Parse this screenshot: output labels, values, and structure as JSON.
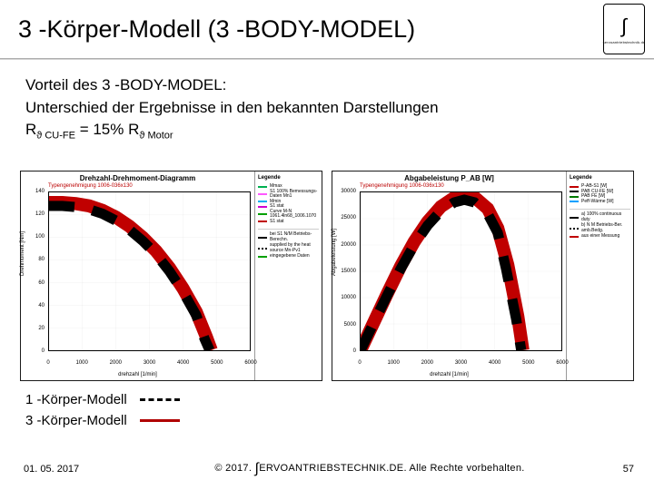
{
  "title": "3 -Körper-Modell (3 -BODY-MODEL)",
  "logo": {
    "symbol": "∫",
    "sub": "servoantriebstechnik.de"
  },
  "body": {
    "l1": "Vorteil des 3 -BODY-MODEL:",
    "l2": "Unterschied der Ergebnisse in den bekannten Darstellungen",
    "l3a": "R",
    "l3sub1": "ϑ CU-FE",
    "l3b": "  =  15%  R",
    "l3sub2": "ϑ Motor"
  },
  "chart_left": {
    "type": "line",
    "title": "Drehzahl-Drehmoment-Diagramm",
    "subtitle": "Typengenehmigung 1006-036x130",
    "xlabel": "drehzahl [1/min]",
    "ylabel": "Drehmoment [Nm]",
    "xlim": [
      0,
      6000
    ],
    "xtick_step": 1000,
    "ylim": [
      0,
      140
    ],
    "ytick_step": 20,
    "grid_color": "#b5b5b5",
    "legend_title": "Legende",
    "legend": [
      {
        "label": "Mmax",
        "color": "#00b050",
        "style": "solid"
      },
      {
        "label": "S1 100% Bemessungs-Daten Mn1",
        "color": "#ff59ff",
        "style": "solid"
      },
      {
        "label": "Mmin",
        "color": "#00b0f0",
        "style": "solid"
      },
      {
        "label": "S1 stat",
        "color": "#d000d0",
        "style": "solid"
      },
      {
        "label": "Curve M-N 1061.4ln68_1006.1070",
        "color": "#00a000",
        "style": "solid"
      },
      {
        "label": "S1 stat",
        "color": "#c00000",
        "style": "solid"
      }
    ],
    "legend_bottom": [
      {
        "label": "bei S1 N/M Betriebs-Berechn.",
        "color": "#000",
        "style": "dashed"
      },
      {
        "label": "supplied by the heat source Mn-Pv1",
        "color": "#000",
        "style": "dotted"
      },
      {
        "label": "eingegebene Daten",
        "color": "#00a000",
        "style": "solid"
      }
    ],
    "series": [
      {
        "name": "3-körper",
        "color": "#c00000",
        "style": "solid",
        "width": 1.8,
        "points": [
          [
            0,
            131
          ],
          [
            400,
            131
          ],
          [
            800,
            130
          ],
          [
            1200,
            128
          ],
          [
            1600,
            124
          ],
          [
            2000,
            118
          ],
          [
            2400,
            110
          ],
          [
            2800,
            100
          ],
          [
            3200,
            88
          ],
          [
            3600,
            73
          ],
          [
            4000,
            55
          ],
          [
            4400,
            34
          ],
          [
            4700,
            12
          ],
          [
            4850,
            0
          ]
        ]
      },
      {
        "name": "1-körper",
        "color": "#000000",
        "style": "dashed",
        "width": 1.4,
        "points": [
          [
            0,
            128
          ],
          [
            400,
            128
          ],
          [
            800,
            127
          ],
          [
            1200,
            125
          ],
          [
            1600,
            121
          ],
          [
            2000,
            115
          ],
          [
            2400,
            107
          ],
          [
            2800,
            97
          ],
          [
            3200,
            85
          ],
          [
            3600,
            70
          ],
          [
            4000,
            52
          ],
          [
            4400,
            31
          ],
          [
            4650,
            10
          ],
          [
            4800,
            0
          ]
        ]
      }
    ]
  },
  "chart_right": {
    "type": "line",
    "title": "Abgabeleistung P_AB [W]",
    "subtitle": "Typengenehmigung 1006-036x130",
    "xlabel": "drehzahl [1/min]",
    "ylabel": "Abgabeleistung [W]",
    "xlim": [
      0,
      6000
    ],
    "xtick_step": 1000,
    "ylim": [
      0,
      30000
    ],
    "ytick_step": 5000,
    "grid_color": "#b5b5b5",
    "legend_title": "Legende",
    "legend": [
      {
        "label": "P-AB-S1 [W]",
        "color": "#c00000",
        "style": "solid"
      },
      {
        "label": "PAB CU-FE [W]",
        "color": "#000000",
        "style": "dashed"
      },
      {
        "label": "PAB FE [W]",
        "color": "#007a00",
        "style": "solid"
      },
      {
        "label": "Peff-Wärme [W]",
        "color": "#00a0ff",
        "style": "solid"
      }
    ],
    "legend_bottom": [
      {
        "label": "a) 100% continuous duty",
        "color": "#000",
        "style": "dashed"
      },
      {
        "label": "b) N M Betriebs-Ber. amb.Bedg.",
        "color": "#000",
        "style": "dotted"
      },
      {
        "label": "aus einer Messung",
        "color": "#c00000",
        "style": "solid"
      }
    ],
    "series": [
      {
        "name": "3-körper",
        "color": "#c00000",
        "style": "solid",
        "width": 1.8,
        "points": [
          [
            0,
            0
          ],
          [
            400,
            5400
          ],
          [
            800,
            10800
          ],
          [
            1200,
            16000
          ],
          [
            1600,
            20600
          ],
          [
            2000,
            24400
          ],
          [
            2400,
            27300
          ],
          [
            2800,
            29000
          ],
          [
            3100,
            29600
          ],
          [
            3400,
            29100
          ],
          [
            3800,
            26900
          ],
          [
            4100,
            23200
          ],
          [
            4400,
            16200
          ],
          [
            4700,
            6400
          ],
          [
            4850,
            0
          ]
        ]
      },
      {
        "name": "1-körper",
        "color": "#000000",
        "style": "dashed",
        "width": 1.4,
        "points": [
          [
            0,
            0
          ],
          [
            400,
            5300
          ],
          [
            800,
            10500
          ],
          [
            1200,
            15500
          ],
          [
            1600,
            20000
          ],
          [
            2000,
            23700
          ],
          [
            2400,
            26500
          ],
          [
            2800,
            28100
          ],
          [
            3100,
            28600
          ],
          [
            3400,
            28100
          ],
          [
            3800,
            25900
          ],
          [
            4100,
            22300
          ],
          [
            4350,
            15400
          ],
          [
            4650,
            5900
          ],
          [
            4800,
            0
          ]
        ]
      }
    ]
  },
  "model_legend": {
    "one": "1 -Körper-Modell",
    "three": "3 -Körper-Modell"
  },
  "footer": {
    "date": "01. 05. 2017",
    "center_a": "© 2017. ",
    "center_b": "ERVOANTRIEBSTECHNIK.DE.  Alle Rechte vorbehalten.",
    "page": "57"
  }
}
